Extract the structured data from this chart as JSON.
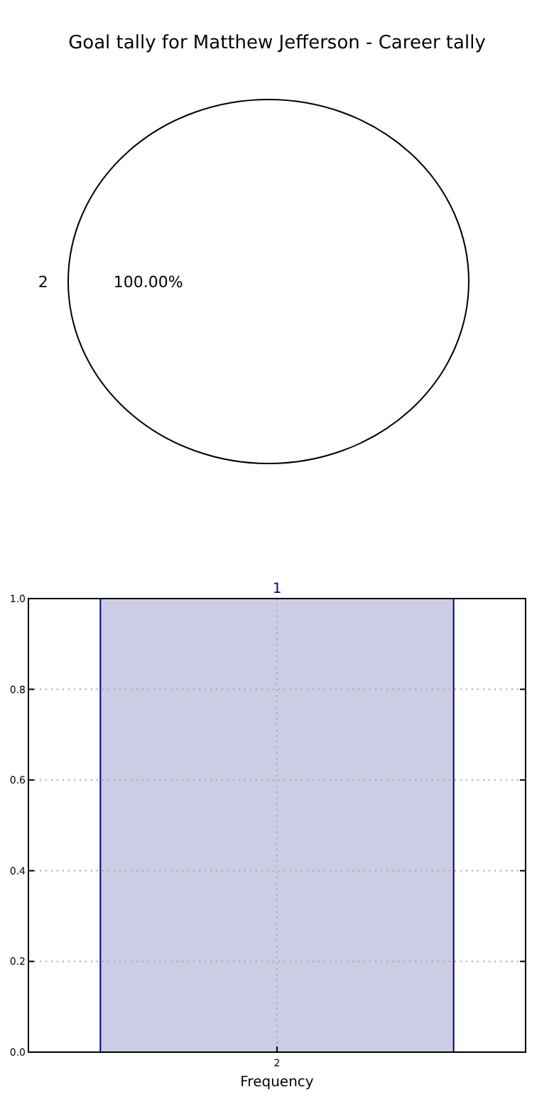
{
  "chart_data": [
    {
      "type": "pie",
      "title": "Goal tally for Matthew Jefferson - Career tally",
      "categories": [
        "2"
      ],
      "values": [
        100
      ],
      "colors": [
        "#ffffff"
      ],
      "value_labels": [
        "100.00%"
      ]
    },
    {
      "type": "bar",
      "categories": [
        "2"
      ],
      "values": [
        1
      ],
      "color": "#cccce5",
      "data_labels": true,
      "xlabel": "Frequency",
      "ylim": [
        0,
        1
      ],
      "yticks": [
        {
          "value": 0,
          "label": "0.0"
        },
        {
          "value": 0.2,
          "label": "0.2"
        },
        {
          "value": 0.4,
          "label": "0.4"
        },
        {
          "value": 0.6,
          "label": "0.6"
        },
        {
          "value": 0.8,
          "label": "0.8"
        },
        {
          "value": 1,
          "label": "1.0"
        }
      ],
      "grid": true
    }
  ]
}
